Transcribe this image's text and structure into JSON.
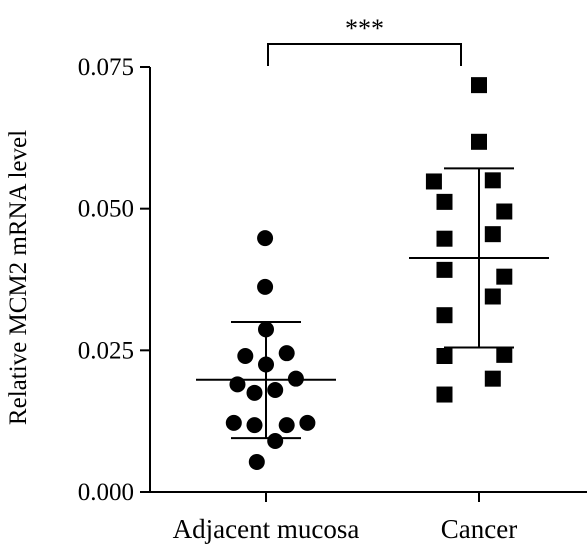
{
  "chart_data": {
    "type": "scatter",
    "title": "",
    "xlabel": "",
    "ylabel": "Relative MCM2 mRNA level",
    "ylim": [
      0,
      0.075
    ],
    "yticks": [
      {
        "value": 0.0,
        "label": "0.000"
      },
      {
        "value": 0.025,
        "label": "0.025"
      },
      {
        "value": 0.05,
        "label": "0.050"
      },
      {
        "value": 0.075,
        "label": "0.075"
      }
    ],
    "categories": [
      "Adjacent mucosa",
      "Cancer"
    ],
    "grid": false,
    "significance": {
      "label": "***",
      "between": [
        "Adjacent mucosa",
        "Cancer"
      ]
    },
    "groups": [
      {
        "category": "Adjacent mucosa",
        "marker": "circle",
        "mean": 0.0198,
        "sd_low": 0.0095,
        "sd_high": 0.03,
        "points": [
          {
            "offset": -0.02,
            "y": 0.0448
          },
          {
            "offset": -0.02,
            "y": 0.0362
          },
          {
            "offset": 0.0,
            "y": 0.0287
          },
          {
            "offset": -0.45,
            "y": 0.024
          },
          {
            "offset": 0.0,
            "y": 0.0225
          },
          {
            "offset": 0.45,
            "y": 0.0245
          },
          {
            "offset": -0.62,
            "y": 0.019
          },
          {
            "offset": -0.25,
            "y": 0.0175
          },
          {
            "offset": 0.2,
            "y": 0.018
          },
          {
            "offset": 0.65,
            "y": 0.02
          },
          {
            "offset": -0.7,
            "y": 0.0122
          },
          {
            "offset": -0.25,
            "y": 0.0118
          },
          {
            "offset": 0.45,
            "y": 0.0118
          },
          {
            "offset": 0.9,
            "y": 0.0122
          },
          {
            "offset": 0.2,
            "y": 0.009
          },
          {
            "offset": -0.2,
            "y": 0.0053
          }
        ]
      },
      {
        "category": "Cancer",
        "marker": "square",
        "mean": 0.0413,
        "sd_low": 0.0255,
        "sd_high": 0.0571,
        "points": [
          {
            "offset": 0.0,
            "y": 0.0718
          },
          {
            "offset": 0.0,
            "y": 0.0618
          },
          {
            "offset": -0.98,
            "y": 0.0548
          },
          {
            "offset": 0.3,
            "y": 0.055
          },
          {
            "offset": -0.75,
            "y": 0.0512
          },
          {
            "offset": 0.55,
            "y": 0.0495
          },
          {
            "offset": -0.75,
            "y": 0.0447
          },
          {
            "offset": 0.3,
            "y": 0.0455
          },
          {
            "offset": -0.75,
            "y": 0.0392
          },
          {
            "offset": 0.55,
            "y": 0.038
          },
          {
            "offset": 0.3,
            "y": 0.0345
          },
          {
            "offset": -0.75,
            "y": 0.0312
          },
          {
            "offset": -0.75,
            "y": 0.024
          },
          {
            "offset": 0.55,
            "y": 0.0242
          },
          {
            "offset": 0.3,
            "y": 0.02
          },
          {
            "offset": -0.75,
            "y": 0.0172
          }
        ]
      }
    ]
  }
}
